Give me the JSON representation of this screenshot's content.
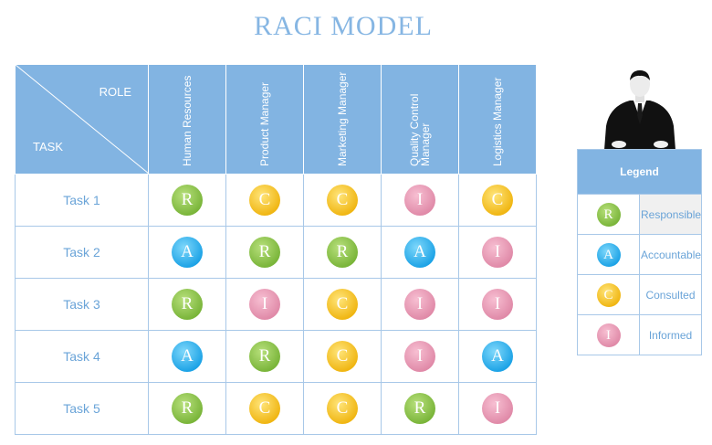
{
  "title": "RACI MODEL",
  "corner": {
    "role_label": "ROLE",
    "task_label": "TASK"
  },
  "roles": [
    "Human Resources",
    "Product Manager",
    "Marketing Manager",
    "Quality Control\nManager",
    "Logistics Manager"
  ],
  "tasks": [
    {
      "name": "Task 1",
      "assignments": [
        "R",
        "C",
        "C",
        "I",
        "C"
      ]
    },
    {
      "name": "Task 2",
      "assignments": [
        "A",
        "R",
        "R",
        "A",
        "I"
      ]
    },
    {
      "name": "Task 3",
      "assignments": [
        "R",
        "I",
        "C",
        "I",
        "I"
      ]
    },
    {
      "name": "Task 4",
      "assignments": [
        "A",
        "R",
        "C",
        "I",
        "A"
      ]
    },
    {
      "name": "Task 5",
      "assignments": [
        "R",
        "C",
        "C",
        "R",
        "I"
      ]
    }
  ],
  "legend": {
    "title": "Legend",
    "items": [
      {
        "letter": "R",
        "label": "Responsible"
      },
      {
        "letter": "A",
        "label": "Accountable"
      },
      {
        "letter": "C",
        "label": "Consulted"
      },
      {
        "letter": "I",
        "label": "Informed"
      }
    ]
  },
  "colors": {
    "header": "#82b4e2",
    "R": "#7ab53a",
    "A": "#1da3e6",
    "C": "#f0b613",
    "I": "#e08aa8"
  },
  "decorations": {
    "person_icon": "businessman-icon"
  }
}
